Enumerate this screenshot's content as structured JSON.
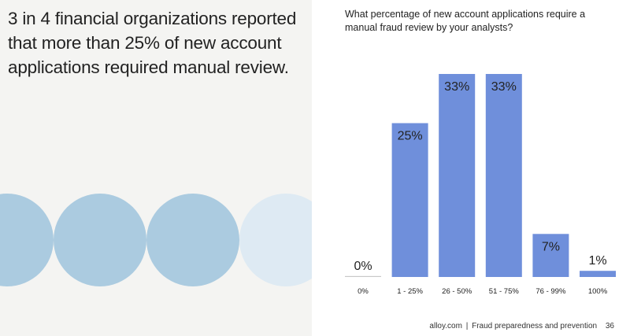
{
  "headline": "3 in 4 financial organizations reported that more than 25% of new account applications required manual review.",
  "colors": {
    "bar": "#6f8fdb",
    "left_background": "#f4f4f2",
    "circle_dark": "#abcbe0",
    "circle_light": "#deeaf3",
    "text": "#222222"
  },
  "decorations": {
    "circles": [
      "circle_dark",
      "circle_dark",
      "circle_dark",
      "circle_light"
    ]
  },
  "footer": {
    "site": "alloy.com",
    "separator": "|",
    "publication": "Fraud preparedness and prevention",
    "page_number": "36"
  },
  "chart_data": {
    "type": "bar",
    "title": "What percentage of new account applications require a manual fraud review by your analysts?",
    "xlabel": "",
    "ylabel": "",
    "categories": [
      "0%",
      "1 - 25%",
      "26 - 50%",
      "51 - 75%",
      "76 - 99%",
      "100%"
    ],
    "values": [
      0,
      25,
      33,
      33,
      7,
      1
    ],
    "value_labels": [
      "0%",
      "25%",
      "33%",
      "33%",
      "7%",
      "1%"
    ],
    "ylim": [
      0,
      33
    ],
    "grid": false,
    "legend": "none"
  }
}
